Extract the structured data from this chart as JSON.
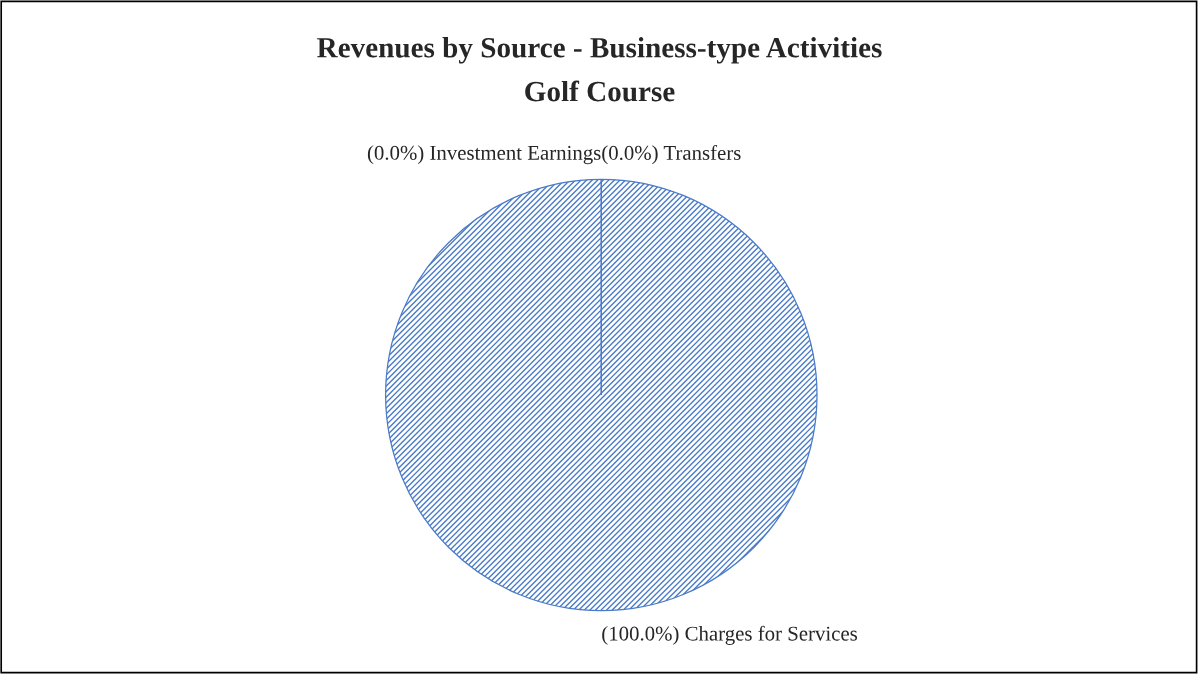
{
  "chart_data": {
    "type": "pie",
    "title": "Revenues by Source - Business-type Activities",
    "subtitle": "Golf Course",
    "categories": [
      "Charges for Services",
      "Investment Earnings",
      "Transfers"
    ],
    "values": [
      100,
      0,
      0
    ],
    "value_labels": [
      "(100.0%)",
      "(0.0%)",
      "(0.0%)"
    ],
    "colors": [
      "#4a7bc8",
      "#4a7bc8",
      "#4a7bc8"
    ]
  }
}
